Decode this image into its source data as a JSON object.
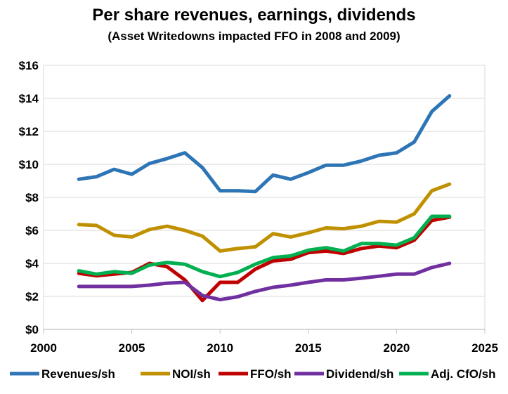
{
  "chart_data": {
    "type": "line",
    "title": "Per share revenues, earnings, dividends",
    "subtitle": "(Asset Writedowns impacted FFO in 2008 and 2009)",
    "xlabel": "",
    "ylabel": "",
    "xlim": [
      2000,
      2025
    ],
    "ylim": [
      0,
      16
    ],
    "x_ticks": [
      2000,
      2005,
      2010,
      2015,
      2020,
      2025
    ],
    "y_ticks": [
      "$0",
      "$2",
      "$4",
      "$6",
      "$8",
      "$10",
      "$12",
      "$14",
      "$16"
    ],
    "grid": "horizontal",
    "legend_position": "bottom",
    "x": [
      2002,
      2003,
      2004,
      2005,
      2006,
      2007,
      2008,
      2009,
      2010,
      2011,
      2012,
      2013,
      2014,
      2015,
      2016,
      2017,
      2018,
      2019,
      2020,
      2021,
      2022,
      2023
    ],
    "series": [
      {
        "name": "Revenues/sh",
        "color": "#2e75b6",
        "values": [
          9.1,
          9.25,
          9.7,
          9.4,
          10.05,
          10.35,
          10.7,
          9.8,
          8.4,
          8.4,
          8.35,
          9.35,
          9.1,
          9.5,
          9.95,
          9.95,
          10.2,
          10.55,
          10.7,
          11.35,
          13.2,
          14.15
        ]
      },
      {
        "name": "NOI/sh",
        "color": "#bf9000",
        "values": [
          6.35,
          6.3,
          5.7,
          5.6,
          6.05,
          6.25,
          6.0,
          5.65,
          4.75,
          4.9,
          5.0,
          5.8,
          5.6,
          5.85,
          6.15,
          6.1,
          6.25,
          6.55,
          6.5,
          7.0,
          8.4,
          8.8
        ]
      },
      {
        "name": "FFO/sh",
        "color": "#c00000",
        "values": [
          3.4,
          3.25,
          3.35,
          3.45,
          4.0,
          3.8,
          3.0,
          1.75,
          2.85,
          2.85,
          3.65,
          4.15,
          4.25,
          4.65,
          4.75,
          4.6,
          4.9,
          5.05,
          4.95,
          5.4,
          6.6,
          6.8
        ]
      },
      {
        "name": "Dividend/sh",
        "color": "#7030a0",
        "values": [
          2.6,
          2.6,
          2.6,
          2.6,
          2.68,
          2.8,
          2.85,
          2.05,
          1.8,
          1.98,
          2.3,
          2.55,
          2.68,
          2.85,
          3.0,
          3.0,
          3.1,
          3.22,
          3.35,
          3.35,
          3.75,
          4.0
        ]
      },
      {
        "name": "Adj. CfO/sh",
        "color": "#00b050",
        "values": [
          3.55,
          3.35,
          3.5,
          3.4,
          3.9,
          4.05,
          3.95,
          3.5,
          3.2,
          3.45,
          3.95,
          4.35,
          4.45,
          4.8,
          4.95,
          4.75,
          5.2,
          5.2,
          5.1,
          5.55,
          6.85,
          6.85
        ]
      }
    ]
  }
}
